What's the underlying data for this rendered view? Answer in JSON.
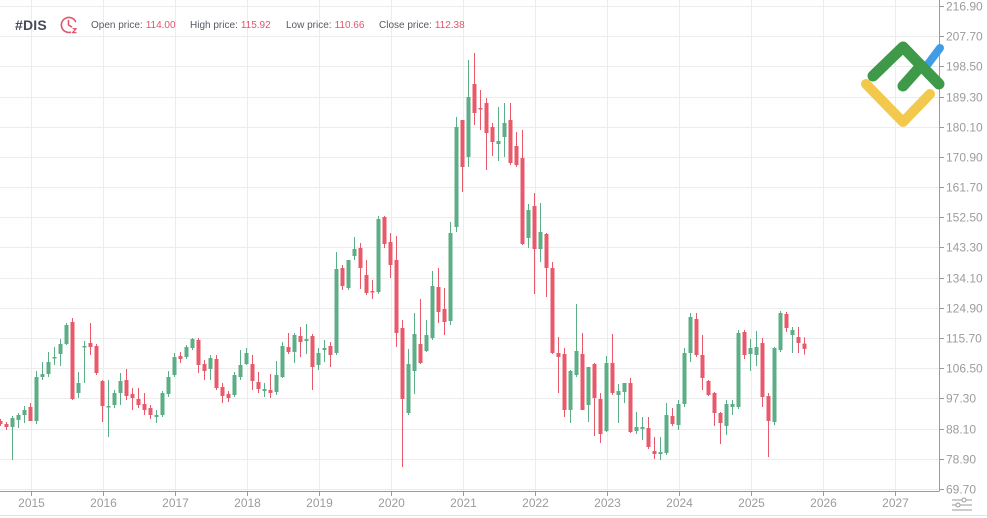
{
  "header": {
    "ticker": "#DIS",
    "open_label": "Open price:",
    "open_value": "114.00",
    "high_label": "High price:",
    "high_value": "115.92",
    "low_label": "Low price:",
    "low_value": "110.66",
    "close_label": "Close price:",
    "close_value": "112.38"
  },
  "icons": {
    "timeframe": "clock-icon",
    "settings": "sliders-icon",
    "logo": "brand-logo"
  },
  "colors": {
    "up": "#5cae86",
    "down": "#e85a6b",
    "accent": "#e0566b",
    "grid": "#ececec",
    "axis": "#9a9a9a",
    "logo_green": "#3e9a48",
    "logo_yellow": "#f2c94c",
    "logo_blue": "#3f9de6"
  },
  "chart_data": {
    "type": "candlestick",
    "title": "#DIS",
    "interval": "monthly",
    "xlabel": "",
    "ylabel": "",
    "ylim": [
      69.7,
      216.9
    ],
    "grid": true,
    "legend": "none",
    "y_axis_position": "right",
    "y_ticks": [
      "216.90",
      "207.70",
      "198.50",
      "189.30",
      "180.10",
      "170.90",
      "161.70",
      "152.50",
      "143.30",
      "134.10",
      "124.90",
      "115.70",
      "106.50",
      "97.30",
      "88.10",
      "78.90",
      "69.70"
    ],
    "x_ticks": [
      "2015",
      "2016",
      "2017",
      "2018",
      "2019",
      "2020",
      "2021",
      "2022",
      "2023",
      "2024",
      "2025",
      "2026",
      "2027"
    ],
    "last_candle": {
      "open": 114.0,
      "high": 115.92,
      "low": 110.66,
      "close": 112.38
    },
    "dates": [
      "2014-08",
      "2014-09",
      "2014-10",
      "2014-11",
      "2014-12",
      "2015-01",
      "2015-02",
      "2015-03",
      "2015-04",
      "2015-05",
      "2015-06",
      "2015-07",
      "2015-08",
      "2015-09",
      "2015-10",
      "2015-11",
      "2015-12",
      "2016-01",
      "2016-02",
      "2016-03",
      "2016-04",
      "2016-05",
      "2016-06",
      "2016-07",
      "2016-08",
      "2016-09",
      "2016-10",
      "2016-11",
      "2016-12",
      "2017-01",
      "2017-02",
      "2017-03",
      "2017-04",
      "2017-05",
      "2017-06",
      "2017-07",
      "2017-08",
      "2017-09",
      "2017-10",
      "2017-11",
      "2017-12",
      "2018-01",
      "2018-02",
      "2018-03",
      "2018-04",
      "2018-05",
      "2018-06",
      "2018-07",
      "2018-08",
      "2018-09",
      "2018-10",
      "2018-11",
      "2018-12",
      "2019-01",
      "2019-02",
      "2019-03",
      "2019-04",
      "2019-05",
      "2019-06",
      "2019-07",
      "2019-08",
      "2019-09",
      "2019-10",
      "2019-11",
      "2019-12",
      "2020-01",
      "2020-02",
      "2020-03",
      "2020-04",
      "2020-05",
      "2020-06",
      "2020-07",
      "2020-08",
      "2020-09",
      "2020-10",
      "2020-11",
      "2020-12",
      "2021-01",
      "2021-02",
      "2021-03",
      "2021-04",
      "2021-05",
      "2021-06",
      "2021-07",
      "2021-08",
      "2021-09",
      "2021-10",
      "2021-11",
      "2021-12",
      "2022-01",
      "2022-02",
      "2022-03",
      "2022-04",
      "2022-05",
      "2022-06",
      "2022-07",
      "2022-08",
      "2022-09",
      "2022-10",
      "2022-11",
      "2022-12",
      "2023-01",
      "2023-02",
      "2023-03",
      "2023-04",
      "2023-05",
      "2023-06",
      "2023-07",
      "2023-08",
      "2023-09",
      "2023-10",
      "2023-11",
      "2023-12",
      "2024-01",
      "2024-02",
      "2024-03",
      "2024-04",
      "2024-05",
      "2024-06",
      "2024-07",
      "2024-08",
      "2024-09",
      "2024-10",
      "2024-11",
      "2024-12",
      "2025-01",
      "2025-02",
      "2025-03",
      "2025-04",
      "2025-05",
      "2025-06",
      "2025-07",
      "2025-08",
      "2025-09",
      "2025-10"
    ],
    "ohlc_columns": [
      "open",
      "high",
      "low",
      "close"
    ],
    "ohlc": [
      [
        90.41,
        91.02,
        88.89,
        89.49
      ],
      [
        89.49,
        90.1,
        87.67,
        88.58
      ],
      [
        88.58,
        91.93,
        78.53,
        91.32
      ],
      [
        90.71,
        92.85,
        88.28,
        92.24
      ],
      [
        92.24,
        94.98,
        89.8,
        93.76
      ],
      [
        94.68,
        95.9,
        90.41,
        90.41
      ],
      [
        90.41,
        105.65,
        89.49,
        103.82
      ],
      [
        103.82,
        108.39,
        102.91,
        104.74
      ],
      [
        104.74,
        111.44,
        103.82,
        108.39
      ],
      [
        109.61,
        112.96,
        107.48,
        109.92
      ],
      [
        110.83,
        115.4,
        107.17,
        113.88
      ],
      [
        113.88,
        120.28,
        113.57,
        119.67
      ],
      [
        120.59,
        121.8,
        96.81,
        97.12
      ],
      [
        98.94,
        105.35,
        97.42,
        101.99
      ],
      [
        112.96,
        114.79,
        101.99,
        113.27
      ],
      [
        114.18,
        120.28,
        110.53,
        112.96
      ],
      [
        113.27,
        113.88,
        104.43,
        105.04
      ],
      [
        102.6,
        102.91,
        90.1,
        94.98
      ],
      [
        94.68,
        102.91,
        85.53,
        94.98
      ],
      [
        95.29,
        99.86,
        94.37,
        98.94
      ],
      [
        98.94,
        105.04,
        95.29,
        102.6
      ],
      [
        102.91,
        106.26,
        96.81,
        98.03
      ],
      [
        98.64,
        100.47,
        93.76,
        97.42
      ],
      [
        97.12,
        100.47,
        94.37,
        95.29
      ],
      [
        95.59,
        98.94,
        92.24,
        93.76
      ],
      [
        94.37,
        95.29,
        91.02,
        92.24
      ],
      [
        91.63,
        93.76,
        89.8,
        92.24
      ],
      [
        92.24,
        99.55,
        91.63,
        98.94
      ],
      [
        98.64,
        105.65,
        97.72,
        103.82
      ],
      [
        104.43,
        111.14,
        103.82,
        109.92
      ],
      [
        110.22,
        111.44,
        108.09,
        109.31
      ],
      [
        109.92,
        113.57,
        109.31,
        112.96
      ],
      [
        112.66,
        115.71,
        112.05,
        115.4
      ],
      [
        115.1,
        115.71,
        105.04,
        107.48
      ],
      [
        107.78,
        109.0,
        102.91,
        105.65
      ],
      [
        106.26,
        110.53,
        102.91,
        109.61
      ],
      [
        109.31,
        110.53,
        99.86,
        100.47
      ],
      [
        100.77,
        101.99,
        95.9,
        98.03
      ],
      [
        98.64,
        99.55,
        96.2,
        97.42
      ],
      [
        98.33,
        105.35,
        97.72,
        104.43
      ],
      [
        103.82,
        112.05,
        102.91,
        107.48
      ],
      [
        107.78,
        112.66,
        107.48,
        111.14
      ],
      [
        107.78,
        110.53,
        99.86,
        102.6
      ],
      [
        102.3,
        105.35,
        98.94,
        100.16
      ],
      [
        99.55,
        101.99,
        97.72,
        100.16
      ],
      [
        99.86,
        104.74,
        97.42,
        98.94
      ],
      [
        99.25,
        108.7,
        98.33,
        104.43
      ],
      [
        103.82,
        114.49,
        103.52,
        113.27
      ],
      [
        112.96,
        117.23,
        110.83,
        111.44
      ],
      [
        111.44,
        117.23,
        108.09,
        116.62
      ],
      [
        116.32,
        119.06,
        109.92,
        114.49
      ],
      [
        114.79,
        119.98,
        110.83,
        115.4
      ],
      [
        116.32,
        116.93,
        99.86,
        106.87
      ],
      [
        107.48,
        112.66,
        105.95,
        111.14
      ],
      [
        112.05,
        115.1,
        108.39,
        112.66
      ],
      [
        113.27,
        114.49,
        106.87,
        110.53
      ],
      [
        111.14,
        141.92,
        110.53,
        136.74
      ],
      [
        137.04,
        137.96,
        130.34,
        131.56
      ],
      [
        130.95,
        139.48,
        130.34,
        139.48
      ],
      [
        140.7,
        146.49,
        139.48,
        142.84
      ],
      [
        143.14,
        144.66,
        130.64,
        137.04
      ],
      [
        134.91,
        139.48,
        128.82,
        129.43
      ],
      [
        130.03,
        133.39,
        127.6,
        129.73
      ],
      [
        129.73,
        152.89,
        129.12,
        151.98
      ],
      [
        152.59,
        152.89,
        143.14,
        144.36
      ],
      [
        144.97,
        147.71,
        134.0,
        137.96
      ],
      [
        139.48,
        146.8,
        112.96,
        117.23
      ],
      [
        118.76,
        121.19,
        76.39,
        97.12
      ],
      [
        92.85,
        112.36,
        92.24,
        107.78
      ],
      [
        105.65,
        123.33,
        98.64,
        116.93
      ],
      [
        113.88,
        127.6,
        107.78,
        108.09
      ],
      [
        111.75,
        121.19,
        111.44,
        116.62
      ],
      [
        115.71,
        136.13,
        115.1,
        131.56
      ],
      [
        131.25,
        137.04,
        120.28,
        123.64
      ],
      [
        124.55,
        130.95,
        116.62,
        120.59
      ],
      [
        120.89,
        151.07,
        119.67,
        147.71
      ],
      [
        149.54,
        183.07,
        148.01,
        180.02
      ],
      [
        182.15,
        182.15,
        160.21,
        167.83
      ],
      [
        170.88,
        200.44,
        167.83,
        189.16
      ],
      [
        193.13,
        202.58,
        180.63,
        184.29
      ],
      [
        185.81,
        191.3,
        179.11,
        185.51
      ],
      [
        187.34,
        188.86,
        166.92,
        178.19
      ],
      [
        180.02,
        181.24,
        171.18,
        175.45
      ],
      [
        174.84,
        186.12,
        169.66,
        175.75
      ],
      [
        176.97,
        187.34,
        170.88,
        181.24
      ],
      [
        182.15,
        187.34,
        168.44,
        169.05
      ],
      [
        174.23,
        178.5,
        167.83,
        168.44
      ],
      [
        170.57,
        179.11,
        144.05,
        144.36
      ],
      [
        146.19,
        156.55,
        143.14,
        154.72
      ],
      [
        155.94,
        159.91,
        129.12,
        142.84
      ],
      [
        142.84,
        156.86,
        138.87,
        148.01
      ],
      [
        147.41,
        147.71,
        128.21,
        137.04
      ],
      [
        137.04,
        138.87,
        110.83,
        111.14
      ],
      [
        111.14,
        116.01,
        98.94,
        109.92
      ],
      [
        110.83,
        112.66,
        91.63,
        93.76
      ],
      [
        93.76,
        105.95,
        89.8,
        105.65
      ],
      [
        104.43,
        126.07,
        103.82,
        111.75
      ],
      [
        110.83,
        117.23,
        93.76,
        93.76
      ],
      [
        95.29,
        106.87,
        90.1,
        106.87
      ],
      [
        107.78,
        108.09,
        85.84,
        97.42
      ],
      [
        97.12,
        98.94,
        83.71,
        86.45
      ],
      [
        87.36,
        110.22,
        87.06,
        108.09
      ],
      [
        108.09,
        116.93,
        98.33,
        98.94
      ],
      [
        98.33,
        101.69,
        89.8,
        99.55
      ],
      [
        99.25,
        101.99,
        95.9,
        101.99
      ],
      [
        101.99,
        103.52,
        86.75,
        87.06
      ],
      [
        87.36,
        93.15,
        86.45,
        88.58
      ],
      [
        87.97,
        91.63,
        84.62,
        88.58
      ],
      [
        88.28,
        91.63,
        81.88,
        82.49
      ],
      [
        81.27,
        85.53,
        78.83,
        80.35
      ],
      [
        80.35,
        85.53,
        78.53,
        80.96
      ],
      [
        80.66,
        95.9,
        80.05,
        92.24
      ],
      [
        91.93,
        94.37,
        88.89,
        89.49
      ],
      [
        89.19,
        96.81,
        87.67,
        95.59
      ],
      [
        95.59,
        112.66,
        94.68,
        111.14
      ],
      [
        111.14,
        123.33,
        108.39,
        122.11
      ],
      [
        121.5,
        123.33,
        109.92,
        110.53
      ],
      [
        110.53,
        116.62,
        99.86,
        103.52
      ],
      [
        102.6,
        102.91,
        98.03,
        98.33
      ],
      [
        98.94,
        99.25,
        88.89,
        92.85
      ],
      [
        92.85,
        93.15,
        83.4,
        89.8
      ],
      [
        88.89,
        96.81,
        86.14,
        95.59
      ],
      [
        94.68,
        96.81,
        92.24,
        95.59
      ],
      [
        94.68,
        118.15,
        94.07,
        117.23
      ],
      [
        117.54,
        118.15,
        109.31,
        110.53
      ],
      [
        110.83,
        115.4,
        105.65,
        112.66
      ],
      [
        110.53,
        117.84,
        107.17,
        112.96
      ],
      [
        114.18,
        115.71,
        94.68,
        97.72
      ],
      [
        98.03,
        98.94,
        79.44,
        90.41
      ],
      [
        90.1,
        112.96,
        89.19,
        112.66
      ],
      [
        112.05,
        123.94,
        111.44,
        123.33
      ],
      [
        123.02,
        123.64,
        117.54,
        118.76
      ],
      [
        116.62,
        119.06,
        111.14,
        118.15
      ],
      [
        116.01,
        119.06,
        111.14,
        114.18
      ],
      [
        114.0,
        115.92,
        110.66,
        112.38
      ]
    ]
  }
}
